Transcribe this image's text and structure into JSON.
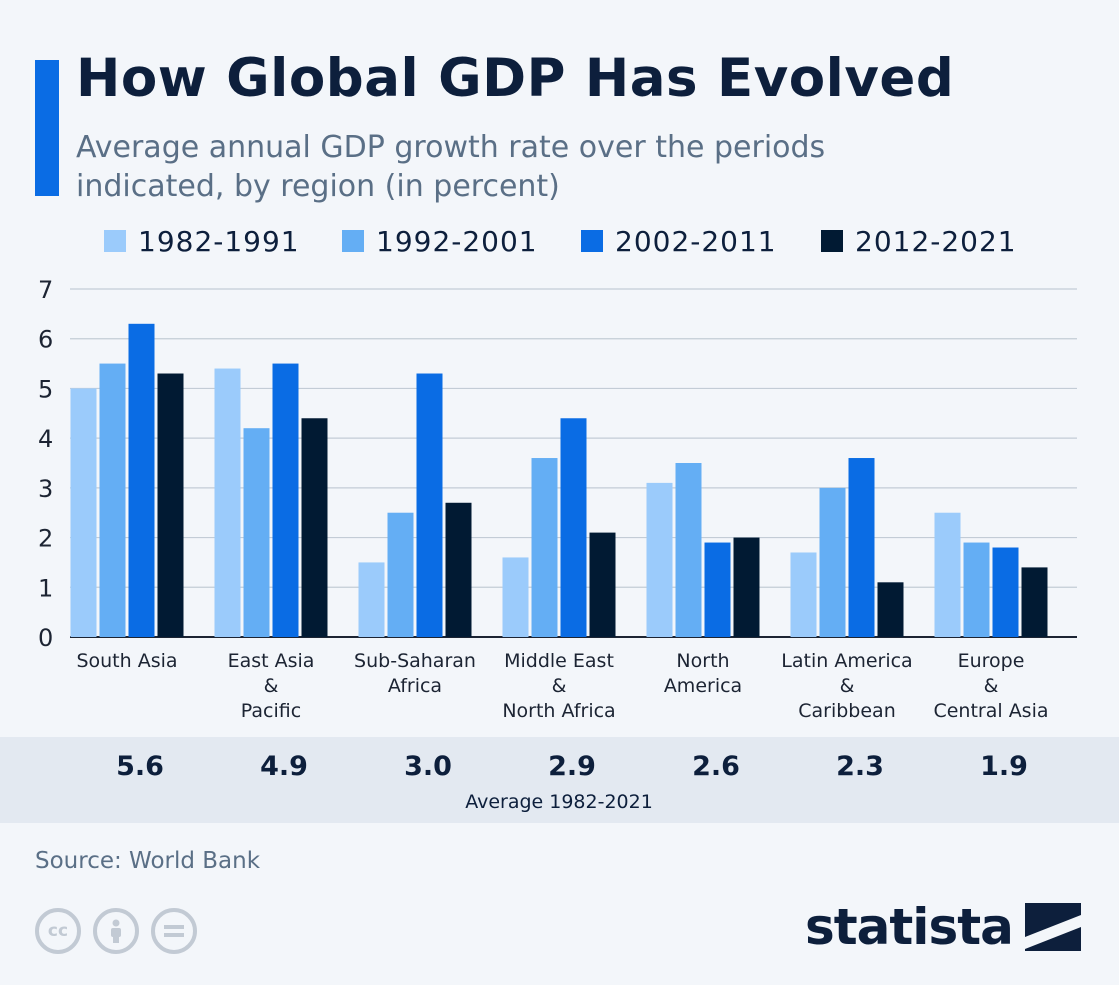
{
  "title": "How Global GDP Has Evolved",
  "subtitle": "Average annual GDP growth rate over the periods indicated, by region (in percent)",
  "source": "Source: World Bank",
  "brand": "statista",
  "colors": {
    "accent": "#0a6ce4",
    "series": [
      "#9bcbfb",
      "#64aef4",
      "#0a6ce4",
      "#011a33"
    ],
    "title": "#0d1f3c",
    "text": "#5a6f86"
  },
  "icons": [
    "cc-icon",
    "by-icon",
    "nd-icon"
  ],
  "chart_data": {
    "type": "bar",
    "categories": [
      [
        "South Asia"
      ],
      [
        "East Asia",
        "&",
        "Pacific"
      ],
      [
        "Sub-Saharan",
        "Africa"
      ],
      [
        "Middle East",
        "&",
        "North Africa"
      ],
      [
        "North",
        "America"
      ],
      [
        "Latin America",
        "&",
        "Caribbean"
      ],
      [
        "Europe",
        "&",
        "Central Asia"
      ]
    ],
    "series": [
      {
        "name": "1982-1991",
        "values": [
          5.0,
          5.4,
          1.5,
          1.6,
          3.1,
          1.7,
          2.5
        ]
      },
      {
        "name": "1992-2001",
        "values": [
          5.5,
          4.2,
          2.5,
          3.6,
          3.5,
          3.0,
          1.9
        ]
      },
      {
        "name": "2002-2011",
        "values": [
          6.3,
          5.5,
          5.3,
          4.4,
          1.9,
          3.6,
          1.8
        ]
      },
      {
        "name": "2012-2021",
        "values": [
          5.3,
          4.4,
          2.7,
          2.1,
          2.0,
          1.1,
          1.4
        ]
      }
    ],
    "ylim": [
      0,
      7
    ],
    "yticks": [
      "0",
      "1",
      "2",
      "3",
      "4",
      "5",
      "6",
      "7"
    ],
    "grid": true,
    "legend": "top",
    "averages": [
      "5.6",
      "4.9",
      "3.0",
      "2.9",
      "2.6",
      "2.3",
      "1.9"
    ],
    "averages_label": "Average 1982-2021"
  }
}
